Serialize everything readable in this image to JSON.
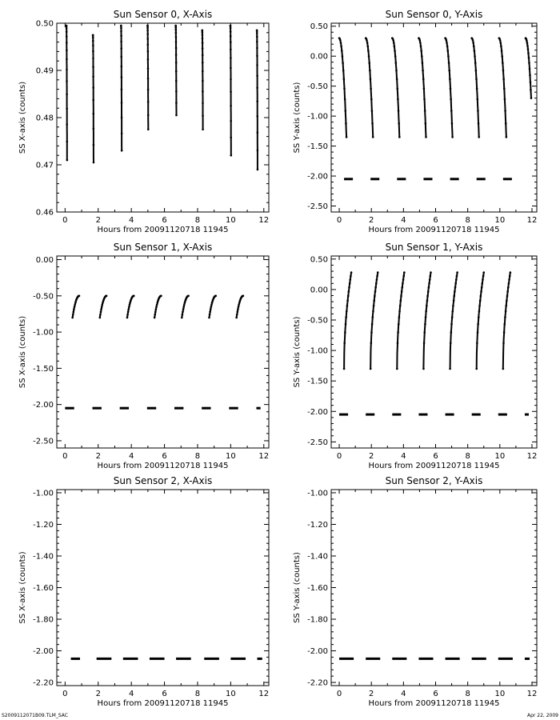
{
  "footer": {
    "left": "S2009112071B09.TLM_SAC",
    "right": "Apr 22, 2009"
  },
  "chart_data": [
    {
      "type": "scatter",
      "title": "Sun Sensor 0, X-Axis",
      "xlabel": "Hours from 20091120718 11945",
      "ylabel": "SS X-axis (counts)",
      "xlim": [
        -0.5,
        12.3
      ],
      "ylim": [
        0.46,
        0.5
      ],
      "xticks": [
        0,
        2,
        4,
        6,
        8,
        10,
        12
      ],
      "yticks": [
        0.46,
        0.47,
        0.48,
        0.49,
        0.5
      ],
      "yticklabels": [
        "0.46",
        "0.47",
        "0.48",
        "0.49",
        "0.50"
      ],
      "series": [
        {
          "kind": "sweep",
          "curve": "down",
          "segments": [
            {
              "x0": 0.08,
              "x1": 0.12,
              "y0": 0.4995,
              "y1": 0.471
            },
            {
              "x0": 1.68,
              "x1": 1.72,
              "y0": 0.4975,
              "y1": 0.4705
            },
            {
              "x0": 3.38,
              "x1": 3.42,
              "y0": 0.4995,
              "y1": 0.473
            },
            {
              "x0": 4.98,
              "x1": 5.02,
              "y0": 0.4995,
              "y1": 0.4775
            },
            {
              "x0": 6.68,
              "x1": 6.72,
              "y0": 0.4995,
              "y1": 0.4805
            },
            {
              "x0": 8.28,
              "x1": 8.32,
              "y0": 0.4985,
              "y1": 0.4775
            },
            {
              "x0": 9.98,
              "x1": 10.02,
              "y0": 0.4995,
              "y1": 0.472
            },
            {
              "x0": 11.58,
              "x1": 11.62,
              "y0": 0.4985,
              "y1": 0.469
            }
          ]
        }
      ]
    },
    {
      "type": "scatter",
      "title": "Sun Sensor 0, Y-Axis",
      "xlabel": "Hours from 20091120718 11945",
      "ylabel": "SS Y-axis (counts)",
      "xlim": [
        -0.5,
        12.3
      ],
      "ylim": [
        -2.6,
        0.55
      ],
      "xticks": [
        0,
        2,
        4,
        6,
        8,
        10,
        12
      ],
      "yticks": [
        -2.5,
        -2.0,
        -1.5,
        -1.0,
        -0.5,
        0.0,
        0.5
      ],
      "yticklabels": [
        "-2.50",
        "-2.00",
        "-1.50",
        "-1.00",
        "-0.50",
        "0.00",
        "0.50"
      ],
      "series": [
        {
          "kind": "sweep",
          "curve": "down",
          "segments": [
            {
              "x0": 0.0,
              "x1": 0.45,
              "y0": 0.3,
              "y1": -1.35
            },
            {
              "x0": 1.65,
              "x1": 2.1,
              "y0": 0.3,
              "y1": -1.35
            },
            {
              "x0": 3.3,
              "x1": 3.75,
              "y0": 0.3,
              "y1": -1.35
            },
            {
              "x0": 4.95,
              "x1": 5.4,
              "y0": 0.3,
              "y1": -1.35
            },
            {
              "x0": 6.6,
              "x1": 7.05,
              "y0": 0.3,
              "y1": -1.35
            },
            {
              "x0": 8.25,
              "x1": 8.7,
              "y0": 0.3,
              "y1": -1.35
            },
            {
              "x0": 9.95,
              "x1": 10.4,
              "y0": 0.3,
              "y1": -1.35
            },
            {
              "x0": 11.6,
              "x1": 11.95,
              "y0": 0.3,
              "y1": -0.7
            }
          ]
        },
        {
          "kind": "dash",
          "y": -2.05,
          "segments": [
            {
              "x0": 0.3,
              "x1": 0.85
            },
            {
              "x0": 1.95,
              "x1": 2.5
            },
            {
              "x0": 3.6,
              "x1": 4.15
            },
            {
              "x0": 5.25,
              "x1": 5.8
            },
            {
              "x0": 6.9,
              "x1": 7.45
            },
            {
              "x0": 8.55,
              "x1": 9.1
            },
            {
              "x0": 10.2,
              "x1": 10.75
            }
          ]
        }
      ]
    },
    {
      "type": "scatter",
      "title": "Sun Sensor 1, X-Axis",
      "xlabel": "Hours from 20091120718 11945",
      "ylabel": "SS X-axis (counts)",
      "xlim": [
        -0.5,
        12.3
      ],
      "ylim": [
        -2.6,
        0.05
      ],
      "xticks": [
        0,
        2,
        4,
        6,
        8,
        10,
        12
      ],
      "yticks": [
        -2.5,
        -2.0,
        -1.5,
        -1.0,
        -0.5,
        0.0
      ],
      "yticklabels": [
        "-2.50",
        "-2.00",
        "-1.50",
        "-1.00",
        "-0.50",
        "0.00"
      ],
      "series": [
        {
          "kind": "sweep",
          "curve": "up",
          "segments": [
            {
              "x0": 0.45,
              "x1": 0.85,
              "y0": -0.8,
              "y1": -0.5
            },
            {
              "x0": 2.1,
              "x1": 2.5,
              "y0": -0.8,
              "y1": -0.5
            },
            {
              "x0": 3.75,
              "x1": 4.15,
              "y0": -0.8,
              "y1": -0.5
            },
            {
              "x0": 5.4,
              "x1": 5.8,
              "y0": -0.8,
              "y1": -0.5
            },
            {
              "x0": 7.05,
              "x1": 7.45,
              "y0": -0.8,
              "y1": -0.5
            },
            {
              "x0": 8.7,
              "x1": 9.1,
              "y0": -0.8,
              "y1": -0.5
            },
            {
              "x0": 10.35,
              "x1": 10.75,
              "y0": -0.8,
              "y1": -0.5
            }
          ]
        },
        {
          "kind": "dash",
          "y": -2.05,
          "segments": [
            {
              "x0": 0.0,
              "x1": 0.55
            },
            {
              "x0": 1.65,
              "x1": 2.2
            },
            {
              "x0": 3.3,
              "x1": 3.85
            },
            {
              "x0": 4.95,
              "x1": 5.5
            },
            {
              "x0": 6.6,
              "x1": 7.15
            },
            {
              "x0": 8.25,
              "x1": 8.8
            },
            {
              "x0": 9.9,
              "x1": 10.45
            },
            {
              "x0": 11.55,
              "x1": 11.8
            }
          ]
        }
      ]
    },
    {
      "type": "scatter",
      "title": "Sun Sensor 1, Y-Axis",
      "xlabel": "Hours from 20091120718 11945",
      "ylabel": "SS Y-axis (counts)",
      "xlim": [
        -0.5,
        12.3
      ],
      "ylim": [
        -2.6,
        0.55
      ],
      "xticks": [
        0,
        2,
        4,
        6,
        8,
        10,
        12
      ],
      "yticks": [
        -2.5,
        -2.0,
        -1.5,
        -1.0,
        -0.5,
        0.0,
        0.5
      ],
      "yticklabels": [
        "-2.50",
        "-2.00",
        "-1.50",
        "-1.00",
        "-0.50",
        "0.00",
        "0.50"
      ],
      "series": [
        {
          "kind": "sweep",
          "curve": "rise",
          "segments": [
            {
              "x0": 0.3,
              "x1": 0.75,
              "y0": -1.3,
              "y1": 0.28
            },
            {
              "x0": 1.95,
              "x1": 2.4,
              "y0": -1.3,
              "y1": 0.28
            },
            {
              "x0": 3.6,
              "x1": 4.05,
              "y0": -1.3,
              "y1": 0.28
            },
            {
              "x0": 5.25,
              "x1": 5.7,
              "y0": -1.3,
              "y1": 0.28
            },
            {
              "x0": 6.9,
              "x1": 7.35,
              "y0": -1.3,
              "y1": 0.28
            },
            {
              "x0": 8.55,
              "x1": 9.0,
              "y0": -1.3,
              "y1": 0.28
            },
            {
              "x0": 10.2,
              "x1": 10.65,
              "y0": -1.3,
              "y1": 0.28
            }
          ]
        },
        {
          "kind": "dash",
          "y": -2.05,
          "segments": [
            {
              "x0": 0.0,
              "x1": 0.55
            },
            {
              "x0": 1.65,
              "x1": 2.2
            },
            {
              "x0": 3.3,
              "x1": 3.85
            },
            {
              "x0": 4.95,
              "x1": 5.5
            },
            {
              "x0": 6.6,
              "x1": 7.15
            },
            {
              "x0": 8.25,
              "x1": 8.8
            },
            {
              "x0": 9.9,
              "x1": 10.45
            },
            {
              "x0": 11.55,
              "x1": 11.8
            }
          ]
        }
      ]
    },
    {
      "type": "scatter",
      "title": "Sun Sensor 2, X-Axis",
      "xlabel": "Hours from 20091120718 11945",
      "ylabel": "SS X-axis (counts)",
      "xlim": [
        -0.5,
        12.3
      ],
      "ylim": [
        -2.22,
        -0.98
      ],
      "xticks": [
        0,
        2,
        4,
        6,
        8,
        10,
        12
      ],
      "yticks": [
        -2.2,
        -2.0,
        -1.8,
        -1.6,
        -1.4,
        -1.2,
        -1.0
      ],
      "yticklabels": [
        "-2.20",
        "-2.00",
        "-1.80",
        "-1.60",
        "-1.40",
        "-1.20",
        "-1.00"
      ],
      "series": [
        {
          "kind": "dash",
          "y": -2.05,
          "segments": [
            {
              "x0": 0.35,
              "x1": 0.9
            },
            {
              "x0": 1.9,
              "x1": 2.8
            },
            {
              "x0": 3.5,
              "x1": 4.4
            },
            {
              "x0": 5.1,
              "x1": 6.0
            },
            {
              "x0": 6.7,
              "x1": 7.6
            },
            {
              "x0": 8.4,
              "x1": 9.3
            },
            {
              "x0": 10.0,
              "x1": 10.9
            },
            {
              "x0": 11.6,
              "x1": 11.9
            }
          ]
        }
      ]
    },
    {
      "type": "scatter",
      "title": "Sun Sensor 2, Y-Axis",
      "xlabel": "Hours from 20091120718 11945",
      "ylabel": "SS Y-axis (counts)",
      "xlim": [
        -0.5,
        12.3
      ],
      "ylim": [
        -2.22,
        -0.98
      ],
      "xticks": [
        0,
        2,
        4,
        6,
        8,
        10,
        12
      ],
      "yticks": [
        -2.2,
        -2.0,
        -1.8,
        -1.6,
        -1.4,
        -1.2,
        -1.0
      ],
      "yticklabels": [
        "-2.20",
        "-2.00",
        "-1.80",
        "-1.60",
        "-1.40",
        "-1.20",
        "-1.00"
      ],
      "series": [
        {
          "kind": "dash",
          "y": -2.05,
          "segments": [
            {
              "x0": 0.0,
              "x1": 0.9
            },
            {
              "x0": 1.65,
              "x1": 2.55
            },
            {
              "x0": 3.3,
              "x1": 4.2
            },
            {
              "x0": 4.95,
              "x1": 5.85
            },
            {
              "x0": 6.6,
              "x1": 7.5
            },
            {
              "x0": 8.25,
              "x1": 9.15
            },
            {
              "x0": 9.9,
              "x1": 10.8
            },
            {
              "x0": 11.55,
              "x1": 11.85
            }
          ]
        }
      ]
    }
  ]
}
